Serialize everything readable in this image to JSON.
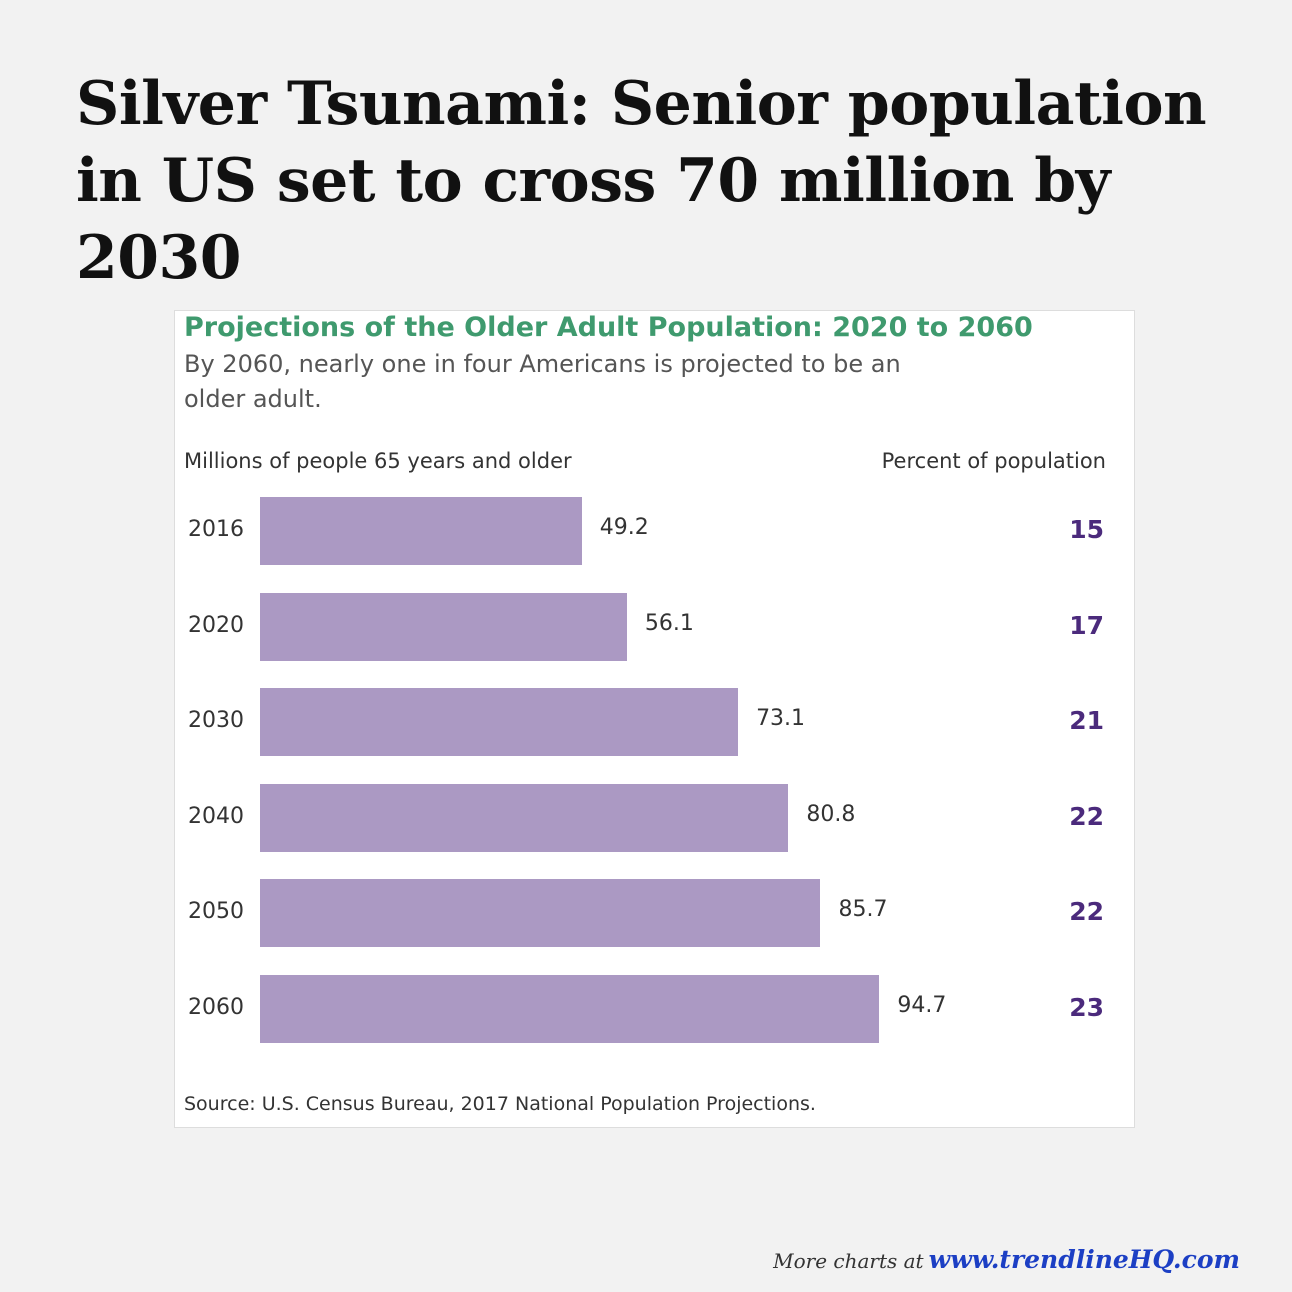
{
  "headline": "Silver Tsunami: Senior population in US set to cross 70 million by 2030",
  "chart_data": {
    "type": "bar",
    "orientation": "horizontal",
    "title": "Projections of the Older Adult Population: 2020 to 2060",
    "subtitle": "By 2060, nearly one in four Americans is projected to be an older adult.",
    "x_label": "Millions of people 65 years and older",
    "side_label": "Percent of population",
    "categories": [
      "2016",
      "2020",
      "2030",
      "2040",
      "2050",
      "2060"
    ],
    "values": [
      49.2,
      56.1,
      73.1,
      80.8,
      85.7,
      94.7
    ],
    "color": "#ab99c3",
    "percent_values": [
      15,
      17,
      21,
      22,
      22,
      23
    ],
    "percent_color": "#4b2a7c",
    "source": "Source: U.S. Census Bureau, 2017 National Population Projections."
  },
  "footer": {
    "text": "More charts at",
    "link": "www.trendlineHQ.com"
  }
}
